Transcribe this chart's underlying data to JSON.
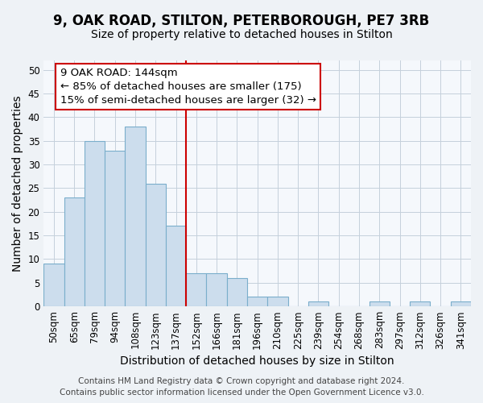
{
  "title": "9, OAK ROAD, STILTON, PETERBOROUGH, PE7 3RB",
  "subtitle": "Size of property relative to detached houses in Stilton",
  "xlabel": "Distribution of detached houses by size in Stilton",
  "ylabel": "Number of detached properties",
  "categories": [
    "50sqm",
    "65sqm",
    "79sqm",
    "94sqm",
    "108sqm",
    "123sqm",
    "137sqm",
    "152sqm",
    "166sqm",
    "181sqm",
    "196sqm",
    "210sqm",
    "225sqm",
    "239sqm",
    "254sqm",
    "268sqm",
    "283sqm",
    "297sqm",
    "312sqm",
    "326sqm",
    "341sqm"
  ],
  "values": [
    9,
    23,
    35,
    33,
    38,
    26,
    17,
    7,
    7,
    6,
    2,
    2,
    0,
    1,
    0,
    0,
    1,
    0,
    1,
    0,
    1
  ],
  "bar_color": "#ccdded",
  "bar_edge_color": "#7aaecb",
  "vline_color": "#cc0000",
  "annotation_text_line1": "9 OAK ROAD: 144sqm",
  "annotation_text_line2": "← 85% of detached houses are smaller (175)",
  "annotation_text_line3": "15% of semi-detached houses are larger (32) →",
  "ylim": [
    0,
    52
  ],
  "yticks": [
    0,
    5,
    10,
    15,
    20,
    25,
    30,
    35,
    40,
    45,
    50
  ],
  "footer_line1": "Contains HM Land Registry data © Crown copyright and database right 2024.",
  "footer_line2": "Contains public sector information licensed under the Open Government Licence v3.0.",
  "bg_color": "#eef2f6",
  "plot_bg_color": "#f5f8fc",
  "grid_color": "#c5d0dc",
  "title_fontsize": 12,
  "subtitle_fontsize": 10,
  "axis_label_fontsize": 10,
  "tick_fontsize": 8.5,
  "footer_fontsize": 7.5,
  "annot_fontsize": 9.5
}
